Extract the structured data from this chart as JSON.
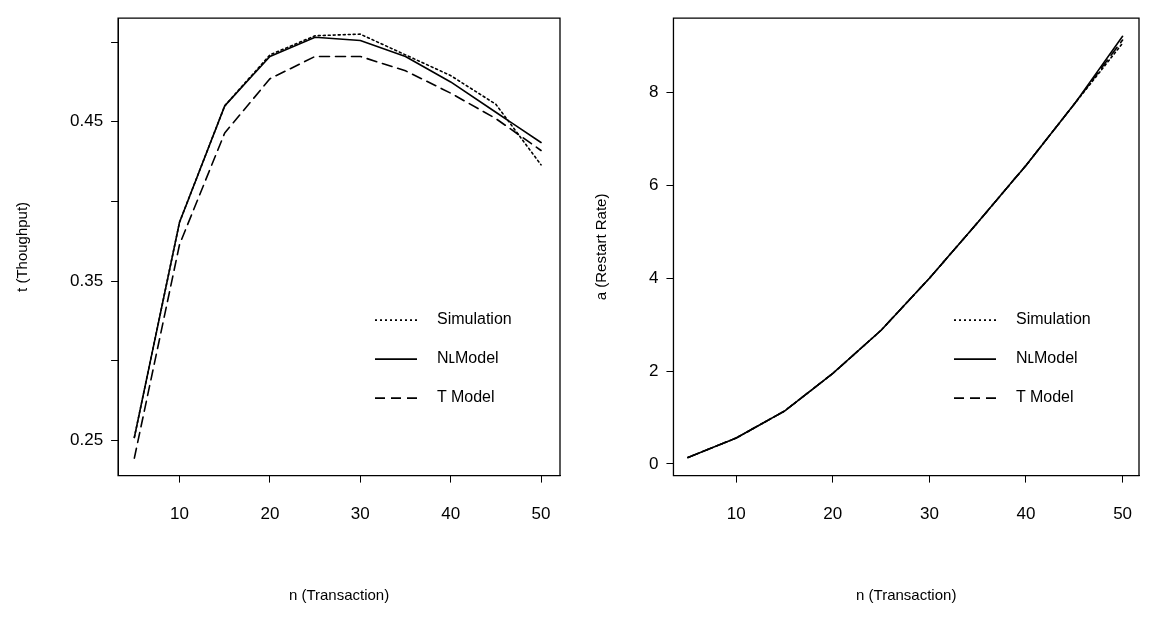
{
  "chart_data": [
    {
      "type": "line",
      "xlabel": "n (Transaction)",
      "ylabel": "t (Thoughput)",
      "x": [
        5,
        10,
        15,
        20,
        25,
        30,
        35,
        40,
        45,
        50
      ],
      "xlim": [
        3.2,
        52.1
      ],
      "ylim": [
        0.228,
        0.515
      ],
      "xticks": [
        10,
        20,
        30,
        40,
        50
      ],
      "yticks": [
        0.25,
        {
          "value": 0.3,
          "label": null
        },
        0.35,
        {
          "value": 0.4,
          "label": null
        },
        0.45,
        {
          "value": 0.5,
          "label": null
        }
      ],
      "grid": false,
      "legend": "right",
      "marker": "none",
      "series": [
        {
          "name": "Simulation",
          "color": "#000000",
          "line_style": "dotted",
          "values": [
            0.252,
            0.387,
            0.46,
            0.492,
            0.504,
            0.505,
            0.492,
            0.479,
            0.461,
            0.423
          ]
        },
        {
          "name": "NʟModel",
          "color": "#000000",
          "line_style": "solid",
          "values": [
            0.252,
            0.387,
            0.46,
            0.491,
            0.503,
            0.501,
            0.491,
            0.475,
            0.456,
            0.437
          ]
        },
        {
          "name": "T Model",
          "color": "#000000",
          "line_style": "dashed",
          "values": [
            0.239,
            0.373,
            0.443,
            0.477,
            0.491,
            0.491,
            0.482,
            0.468,
            0.452,
            0.432
          ]
        }
      ]
    },
    {
      "type": "line",
      "xlabel": "n (Transaction)",
      "ylabel": "a (Restart Rate)",
      "x": [
        5,
        10,
        15,
        20,
        25,
        30,
        35,
        40,
        45,
        50
      ],
      "xlim": [
        3.5,
        51.7
      ],
      "ylim": [
        -0.25,
        9.6
      ],
      "xticks": [
        10,
        20,
        30,
        40,
        50
      ],
      "yticks": [
        0,
        2,
        4,
        6,
        8
      ],
      "grid": false,
      "legend": "right",
      "marker": "none",
      "series": [
        {
          "name": "Simulation",
          "color": "#000000",
          "line_style": "dotted",
          "values": [
            0.14,
            0.56,
            1.14,
            1.95,
            2.88,
            4.0,
            5.2,
            6.43,
            7.75,
            9.06
          ]
        },
        {
          "name": "NʟModel",
          "color": "#000000",
          "line_style": "solid",
          "values": [
            0.14,
            0.56,
            1.14,
            1.95,
            2.88,
            4.0,
            5.2,
            6.43,
            7.75,
            9.21
          ]
        },
        {
          "name": "T Model",
          "color": "#000000",
          "line_style": "dashed",
          "values": [
            0.14,
            0.56,
            1.14,
            1.95,
            2.88,
            4.0,
            5.2,
            6.43,
            7.75,
            9.13
          ]
        }
      ]
    }
  ]
}
